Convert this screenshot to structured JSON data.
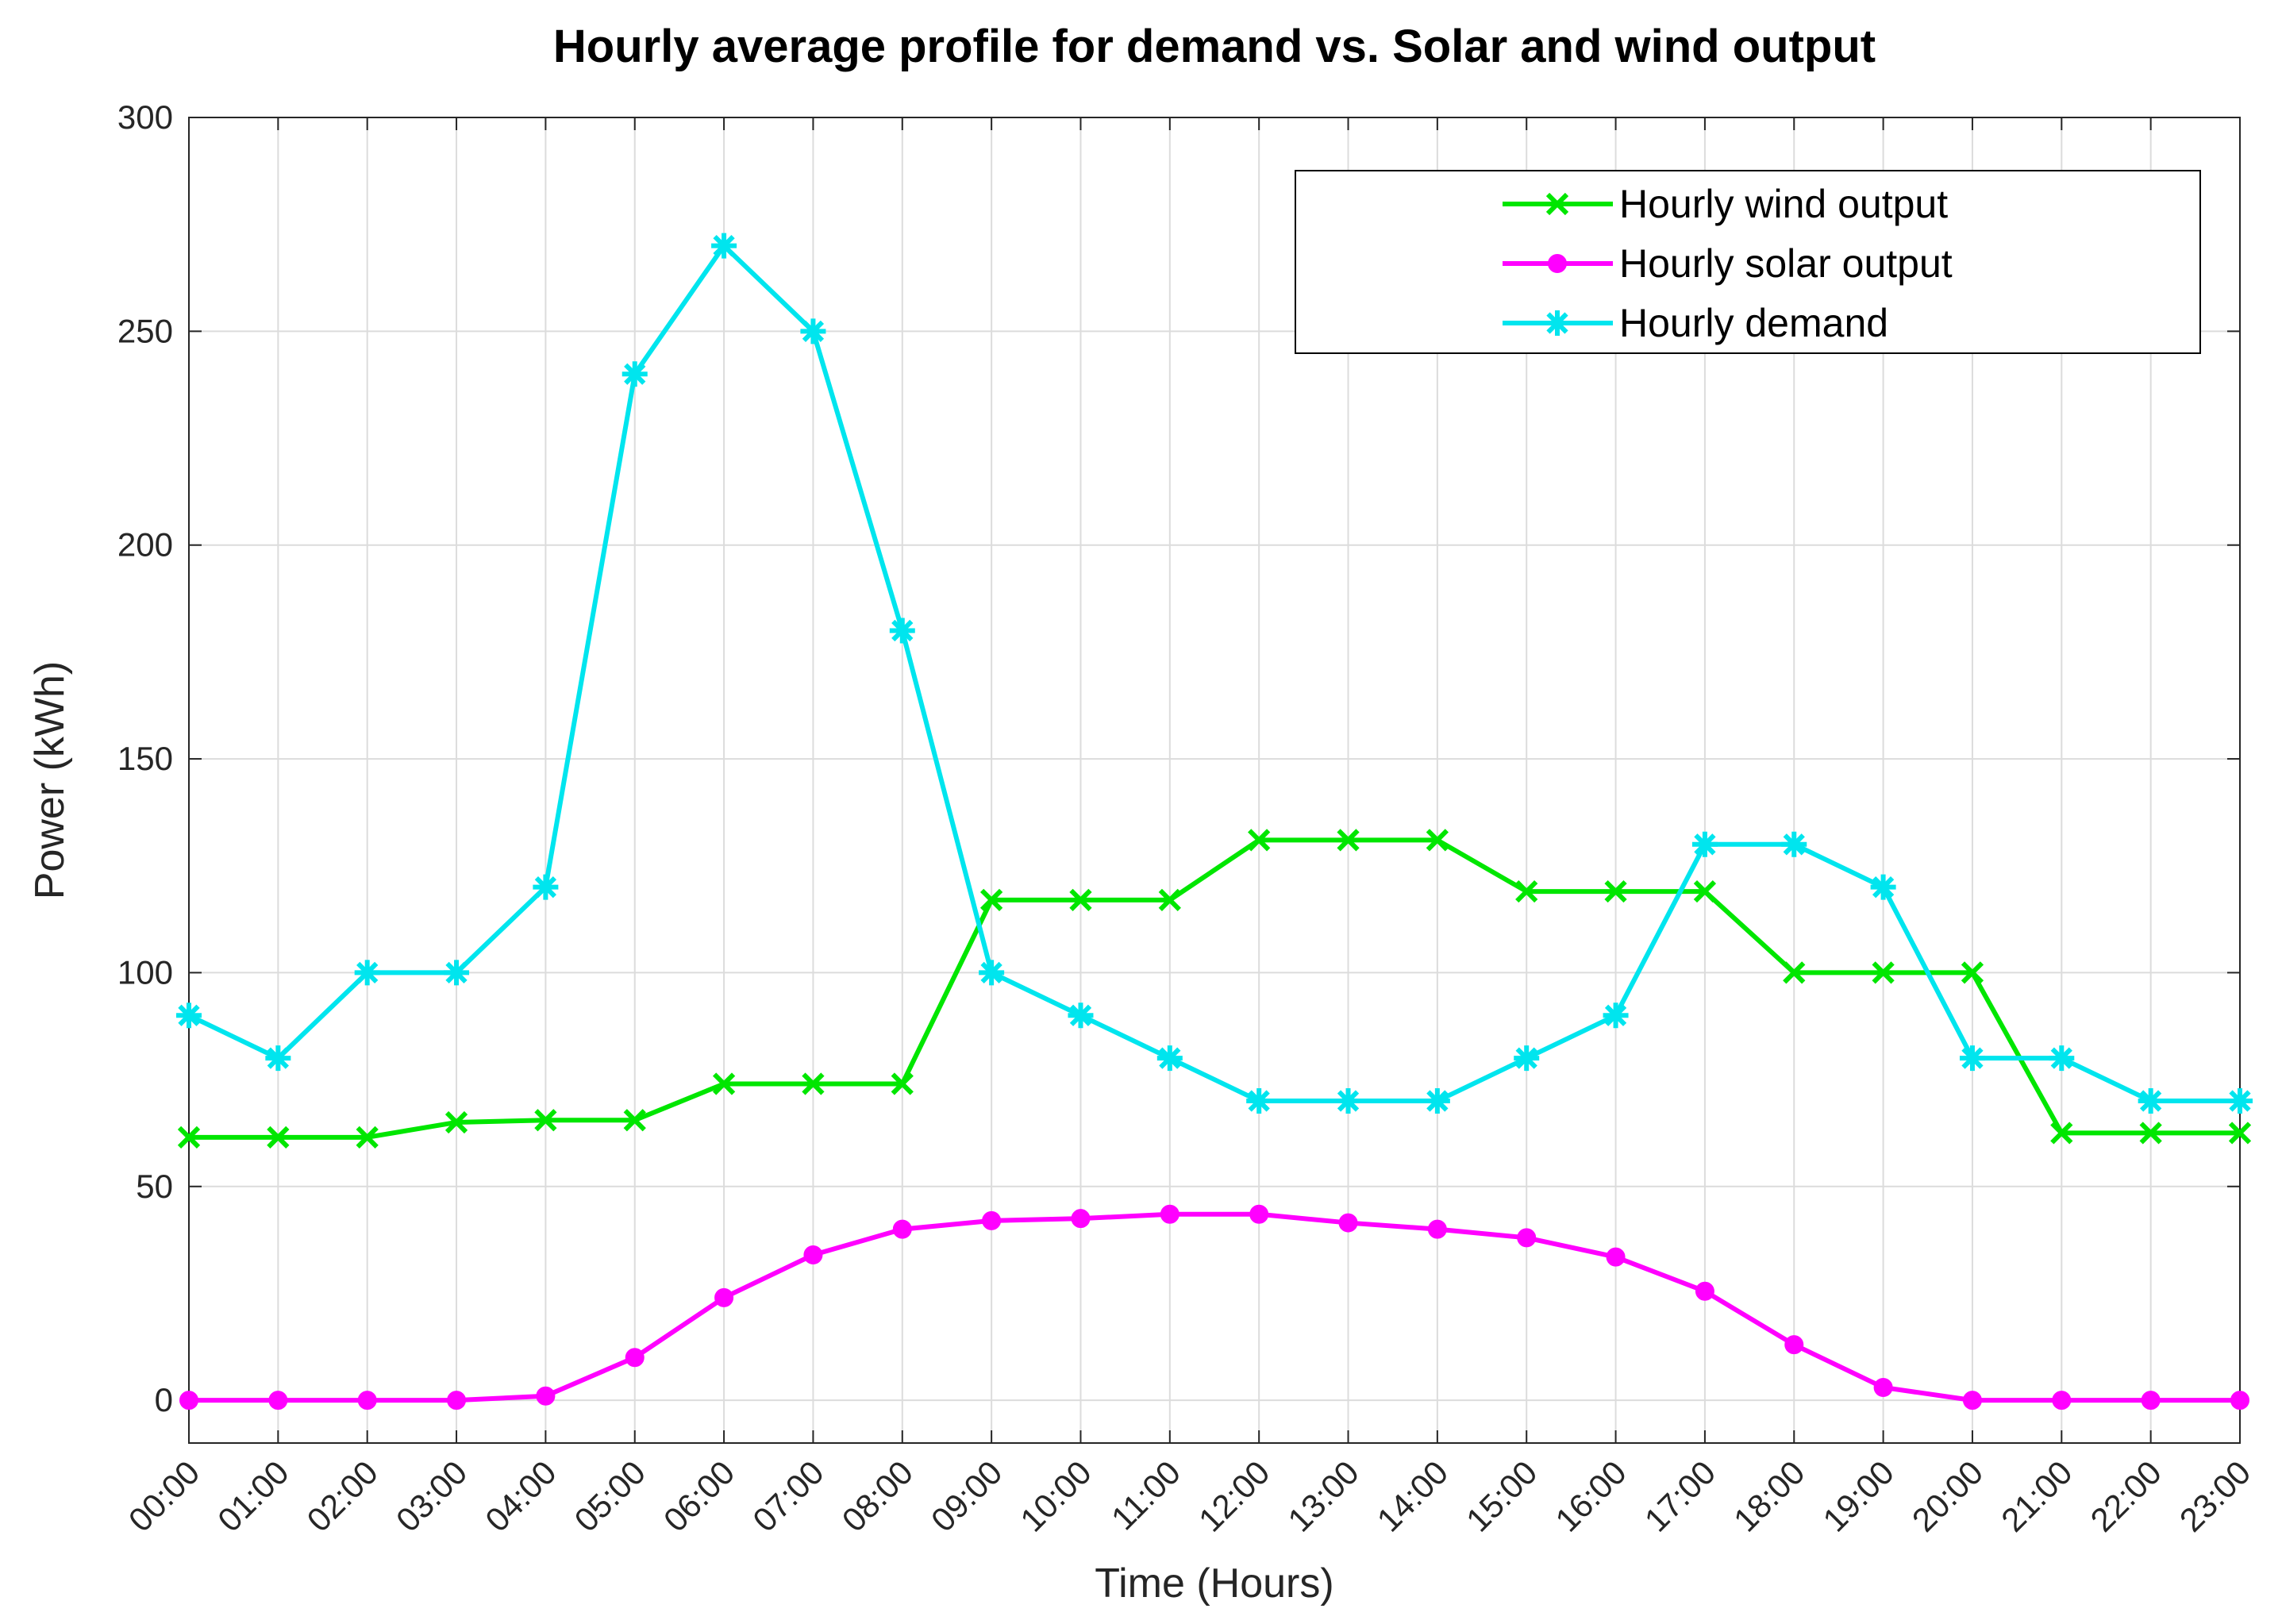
{
  "chart_data": {
    "type": "line",
    "title": "Hourly average profile for demand vs. Solar and wind output",
    "xlabel": "Time (Hours)",
    "ylabel": "Power (kWh)",
    "ylim": [
      -10,
      300
    ],
    "yticks": [
      0,
      50,
      100,
      150,
      200,
      250,
      300
    ],
    "grid": true,
    "legend_position": "top-right",
    "categories": [
      "00:00",
      "01:00",
      "02:00",
      "03:00",
      "04:00",
      "05:00",
      "06:00",
      "07:00",
      "08:00",
      "09:00",
      "10:00",
      "11:00",
      "12:00",
      "13:00",
      "14:00",
      "15:00",
      "16:00",
      "17:00",
      "18:00",
      "19:00",
      "20:00",
      "21:00",
      "22:00",
      "23:00"
    ],
    "series": [
      {
        "name": "Hourly wind output",
        "color": "#00e600",
        "marker": "x",
        "values": [
          61.5,
          61.5,
          61.5,
          65,
          65.5,
          65.5,
          74,
          74,
          74,
          117,
          117,
          117,
          131,
          131,
          131,
          119,
          119,
          119,
          100,
          100,
          100,
          62.5,
          62.5,
          62.5
        ]
      },
      {
        "name": "Hourly solar output",
        "color": "#ff00ff",
        "marker": "circle",
        "values": [
          0,
          0,
          0,
          0,
          1,
          10,
          24,
          34,
          40,
          42,
          42.5,
          43.5,
          43.5,
          41.5,
          40,
          38,
          33.5,
          25.5,
          13,
          3,
          0,
          0,
          0,
          0
        ]
      },
      {
        "name": "Hourly demand",
        "color": "#00e5ee",
        "marker": "asterisk",
        "values": [
          90,
          80,
          100,
          100,
          120,
          240,
          270,
          250,
          180,
          100,
          90,
          80,
          70,
          70,
          70,
          80,
          90,
          130,
          130,
          120,
          80,
          80,
          70,
          70
        ]
      }
    ]
  }
}
